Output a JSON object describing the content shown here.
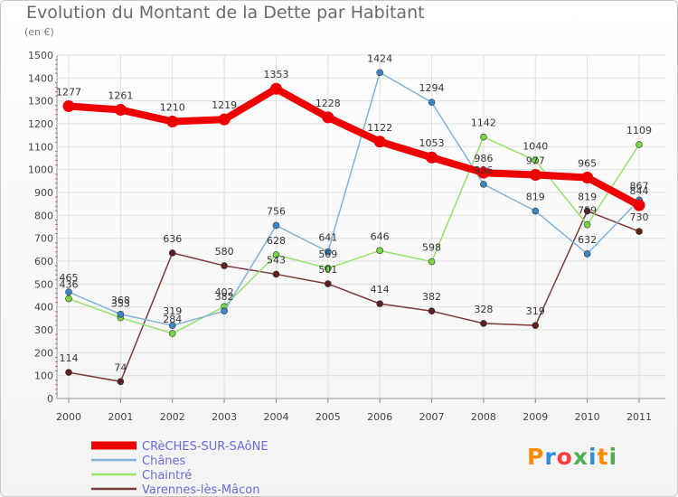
{
  "title": "Evolution du Montant de la Dette par Habitant",
  "subtitle": "(en €)",
  "logo": {
    "text": "Proxiti",
    "colors": [
      "#ff8a00",
      "#2e8fe0",
      "#ff3b3b",
      "#4caf50",
      "#2e8fe0",
      "#ff8a00",
      "#4caf50"
    ]
  },
  "chart_data": {
    "type": "line",
    "title": "Evolution du Montant de la Dette par Habitant",
    "subtitle": "(en €)",
    "x": [
      "2000",
      "2001",
      "2002",
      "2003",
      "2004",
      "2005",
      "2006",
      "2007",
      "2008",
      "2009",
      "2010",
      "2011"
    ],
    "ylim": [
      0,
      1500
    ],
    "yticks": [
      0,
      100,
      200,
      300,
      400,
      500,
      600,
      700,
      800,
      900,
      1000,
      1100,
      1200,
      1300,
      1400,
      1500
    ],
    "grid": true,
    "legend_position": "bottom-left",
    "series": [
      {
        "name": "CRèCHES-SUR-SAôNE",
        "color": "#ee0000",
        "marker": "#ee0000",
        "width": 8,
        "values": [
          1277,
          1261,
          1210,
          1219,
          1353,
          1228,
          1122,
          1053,
          986,
          977,
          965,
          844
        ]
      },
      {
        "name": "Chânes",
        "color": "#7fb3d9",
        "marker": "#3a88c8",
        "width": 1.5,
        "values": [
          465,
          368,
          319,
          382,
          756,
          641,
          1424,
          1294,
          936,
          819,
          632,
          867
        ]
      },
      {
        "name": "Chaintré",
        "color": "#97e26a",
        "marker": "#7ad640",
        "width": 1.5,
        "values": [
          436,
          353,
          284,
          402,
          628,
          569,
          646,
          598,
          1142,
          1040,
          759,
          1109
        ]
      },
      {
        "name": "Varennes-lès-Mâcon",
        "color": "#7a3a3a",
        "marker": "#5e1f1f",
        "width": 1.5,
        "values": [
          114,
          74,
          636,
          580,
          543,
          501,
          414,
          382,
          328,
          319,
          819,
          730
        ]
      }
    ],
    "data_labels": [
      {
        "series": 0,
        "labels": [
          "1277",
          "1261",
          "1210",
          "1219",
          "1353",
          "1228",
          "1122",
          "1053",
          "986",
          "977",
          "965",
          "844"
        ]
      },
      {
        "series": 1,
        "labels": [
          "465",
          "368",
          "319",
          "382",
          "756",
          "641",
          "1424",
          "1294",
          "936",
          "819",
          "632",
          "867"
        ]
      },
      {
        "series": 2,
        "labels": [
          "436",
          "353",
          "284",
          "402",
          "628",
          "569",
          "646",
          "598",
          "1142",
          "1040",
          "759",
          "1109"
        ]
      },
      {
        "series": 3,
        "labels": [
          "114",
          "74",
          "636",
          "580",
          "543",
          "501",
          "414",
          "382",
          "328",
          "319",
          "819",
          "730"
        ]
      }
    ]
  }
}
